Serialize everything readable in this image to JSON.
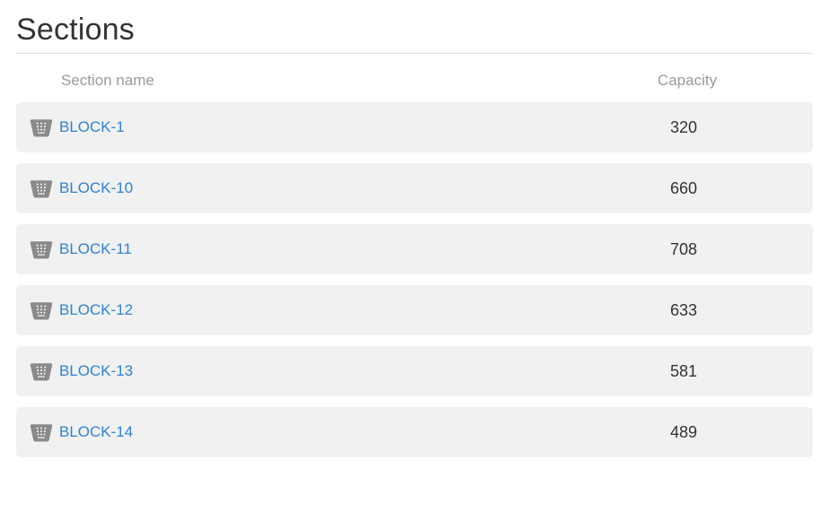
{
  "title": "Sections",
  "columns": {
    "name": "Section name",
    "capacity": "Capacity"
  },
  "rows": [
    {
      "name": "BLOCK-1",
      "capacity": "320"
    },
    {
      "name": "BLOCK-10",
      "capacity": "660"
    },
    {
      "name": "BLOCK-11",
      "capacity": "708"
    },
    {
      "name": "BLOCK-12",
      "capacity": "633"
    },
    {
      "name": "BLOCK-13",
      "capacity": "581"
    },
    {
      "name": "BLOCK-14",
      "capacity": "489"
    }
  ],
  "colors": {
    "link": "#2f81d6",
    "row_bg": "#f1f1f1",
    "header_text": "#9a9a9a",
    "icon_fill": "#8a8a8a",
    "rule": "#dddddd"
  }
}
